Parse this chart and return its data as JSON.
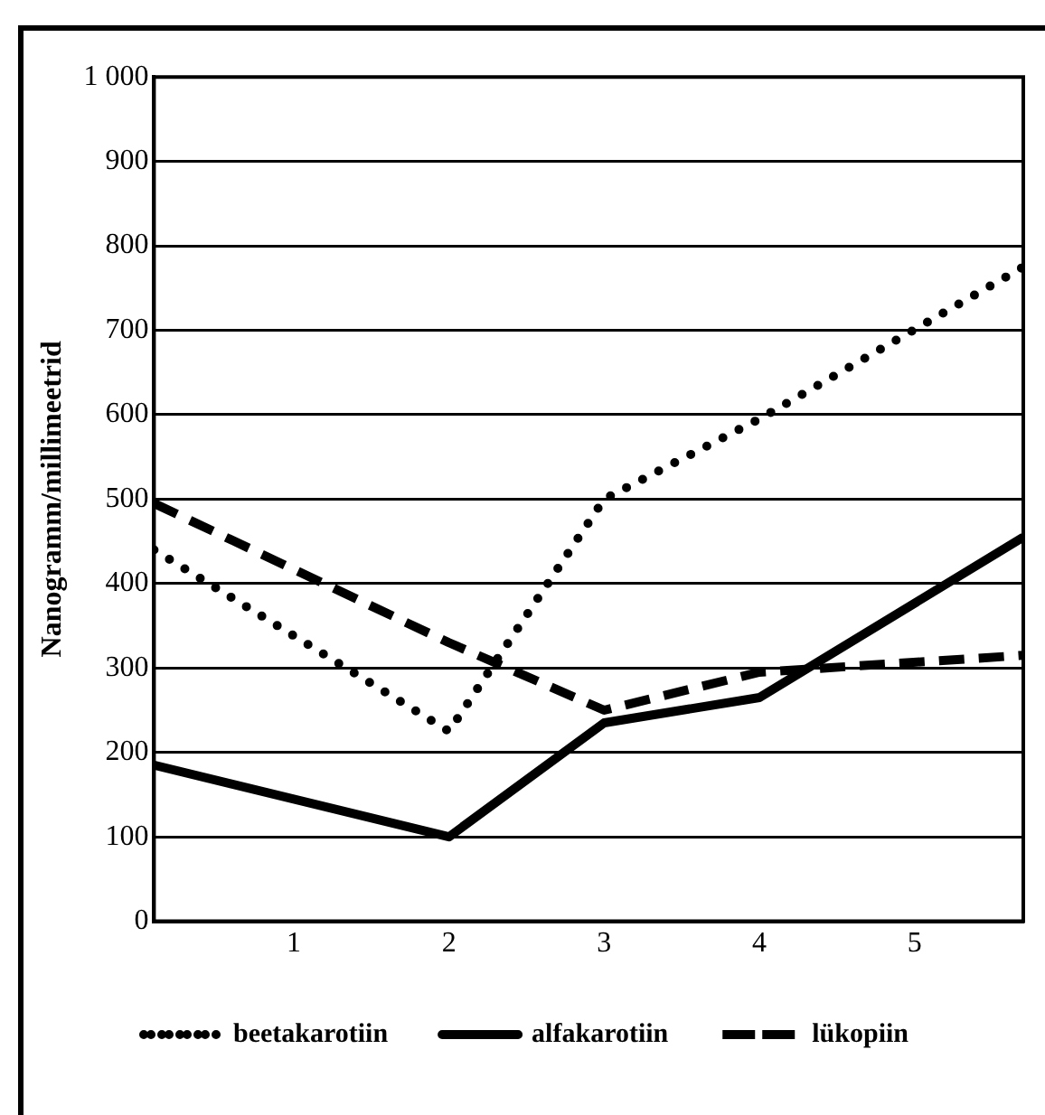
{
  "chart_data": {
    "type": "line",
    "ylabel": "Nanogramm/millimeetrid",
    "x": [
      0.1,
      2,
      3,
      4,
      5.7
    ],
    "series": [
      {
        "name": "beetakarotiin",
        "color": "#000000",
        "line_style": "dotted",
        "values": [
          440,
          225,
          500,
          595,
          775
        ]
      },
      {
        "name": "alfakarotiin",
        "color": "#000000",
        "line_style": "solid",
        "values": [
          185,
          100,
          235,
          265,
          455
        ]
      },
      {
        "name": "lükopiin",
        "color": "#000000",
        "line_style": "dashed",
        "values": [
          495,
          330,
          250,
          295,
          315
        ]
      }
    ],
    "xlim": [
      0.1,
      5.7
    ],
    "xticks": [
      1,
      2,
      3,
      4,
      5
    ],
    "ylim": [
      0,
      1000
    ],
    "yticks": [
      0,
      100,
      200,
      300,
      400,
      500,
      600,
      700,
      800,
      900,
      {
        "value": 1000,
        "label": "1 000"
      }
    ],
    "grid": "y",
    "legend": "bottom",
    "marker": "none"
  }
}
